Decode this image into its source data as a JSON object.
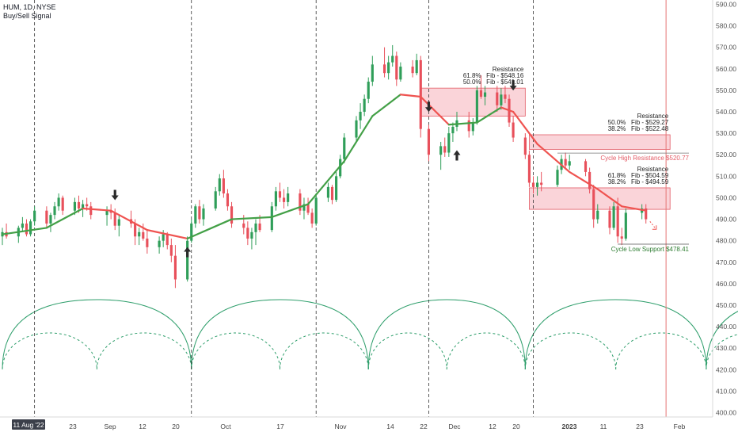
{
  "header": {
    "symbol_line": "HUM, 1D, NYSE",
    "indicator": "Buy/Sell Signal"
  },
  "colors": {
    "up": "#2f9e59",
    "down": "#e8505b",
    "line_up": "#43a047",
    "line_down": "#ef5350",
    "zone_fill": "#f8c6cc",
    "zone_line": "#e35b66",
    "cycle": "#2e9e6b",
    "today_line": "#e57373",
    "support": "#2e7d32"
  },
  "chart_data": {
    "type": "candlestick",
    "ylim": [
      398,
      592
    ],
    "x_dates": [
      "2022-08-11",
      "2023-02-03"
    ],
    "y_ticks": [
      400,
      410,
      420,
      430,
      440,
      450,
      460,
      470,
      480,
      490,
      500,
      510,
      520,
      530,
      540,
      550,
      560,
      570,
      580,
      590
    ],
    "x_labels": [
      "11 Aug '22",
      "23",
      "Sep",
      "12",
      "20",
      "Oct",
      "17",
      "Nov",
      "14",
      "22",
      "Dec",
      "12",
      "20",
      "2023",
      "11",
      "23",
      "Feb"
    ],
    "ohlc": [
      [
        "2022-08-11",
        482,
        486,
        478,
        484
      ],
      [
        "2022-08-12",
        484,
        488,
        481,
        482
      ],
      [
        "2022-08-15",
        482,
        487,
        479,
        486
      ],
      [
        "2022-08-16",
        486,
        491,
        484,
        488
      ],
      [
        "2022-08-17",
        488,
        490,
        482,
        483
      ],
      [
        "2022-08-18",
        483,
        490,
        482,
        489
      ],
      [
        "2022-08-19",
        489,
        496,
        487,
        494
      ],
      [
        "2022-08-22",
        494,
        496,
        486,
        488
      ],
      [
        "2022-08-23",
        488,
        493,
        484,
        492
      ],
      [
        "2022-08-24",
        492,
        498,
        490,
        496
      ],
      [
        "2022-08-25",
        496,
        502,
        494,
        500
      ],
      [
        "2022-08-26",
        500,
        501,
        492,
        494
      ],
      [
        "2022-08-29",
        494,
        500,
        492,
        498
      ],
      [
        "2022-08-30",
        498,
        501,
        493,
        495
      ],
      [
        "2022-08-31",
        495,
        499,
        491,
        497
      ],
      [
        "2022-09-01",
        497,
        500,
        494,
        496
      ],
      [
        "2022-09-02",
        496,
        498,
        490,
        492
      ],
      [
        "2022-09-06",
        492,
        496,
        487,
        494
      ],
      [
        "2022-09-07",
        494,
        497,
        490,
        493
      ],
      [
        "2022-09-08",
        493,
        495,
        485,
        487
      ],
      [
        "2022-09-09",
        487,
        492,
        482,
        490
      ],
      [
        "2022-09-12",
        490,
        494,
        486,
        488
      ],
      [
        "2022-09-13",
        488,
        490,
        478,
        482
      ],
      [
        "2022-09-14",
        482,
        486,
        478,
        484
      ],
      [
        "2022-09-15",
        484,
        488,
        480,
        481
      ],
      [
        "2022-09-16",
        481,
        485,
        474,
        477
      ],
      [
        "2022-09-19",
        477,
        482,
        474,
        480
      ],
      [
        "2022-09-20",
        480,
        485,
        477,
        483
      ],
      [
        "2022-09-21",
        483,
        484,
        476,
        478
      ],
      [
        "2022-09-22",
        478,
        481,
        470,
        473
      ],
      [
        "2022-09-23",
        473,
        478,
        458,
        462
      ],
      [
        "2022-09-26",
        462,
        482,
        461,
        480
      ],
      [
        "2022-09-27",
        480,
        490,
        479,
        488
      ],
      [
        "2022-09-28",
        488,
        497,
        486,
        496
      ],
      [
        "2022-09-29",
        496,
        499,
        488,
        490
      ],
      [
        "2022-09-30",
        490,
        497,
        487,
        495
      ],
      [
        "2022-10-03",
        495,
        505,
        494,
        503
      ],
      [
        "2022-10-04",
        503,
        511,
        501,
        509
      ],
      [
        "2022-10-05",
        509,
        513,
        500,
        502
      ],
      [
        "2022-10-06",
        502,
        504,
        494,
        496
      ],
      [
        "2022-10-07",
        496,
        498,
        486,
        488
      ],
      [
        "2022-10-10",
        488,
        492,
        483,
        486
      ],
      [
        "2022-10-11",
        486,
        489,
        478,
        481
      ],
      [
        "2022-10-12",
        481,
        486,
        476,
        484
      ],
      [
        "2022-10-13",
        484,
        490,
        478,
        488
      ],
      [
        "2022-10-14",
        488,
        492,
        484,
        485
      ],
      [
        "2022-10-17",
        485,
        498,
        484,
        496
      ],
      [
        "2022-10-18",
        496,
        505,
        494,
        503
      ],
      [
        "2022-10-19",
        503,
        507,
        498,
        500
      ],
      [
        "2022-10-20",
        500,
        504,
        495,
        498
      ],
      [
        "2022-10-21",
        498,
        505,
        496,
        502
      ],
      [
        "2022-10-24",
        502,
        504,
        492,
        494
      ],
      [
        "2022-10-25",
        494,
        500,
        490,
        497
      ],
      [
        "2022-10-26",
        497,
        500,
        492,
        493
      ],
      [
        "2022-10-27",
        493,
        495,
        486,
        488
      ],
      [
        "2022-10-28",
        488,
        502,
        487,
        500
      ],
      [
        "2022-10-31",
        500,
        507,
        498,
        505
      ],
      [
        "2022-11-01",
        505,
        506,
        497,
        499
      ],
      [
        "2022-11-02",
        499,
        512,
        498,
        510
      ],
      [
        "2022-11-03",
        510,
        520,
        509,
        518
      ],
      [
        "2022-11-04",
        518,
        530,
        516,
        528
      ],
      [
        "2022-11-07",
        528,
        538,
        526,
        536
      ],
      [
        "2022-11-08",
        536,
        544,
        532,
        540
      ],
      [
        "2022-11-09",
        540,
        548,
        538,
        546
      ],
      [
        "2022-11-10",
        546,
        556,
        544,
        554
      ],
      [
        "2022-11-11",
        554,
        566,
        552,
        562
      ],
      [
        "2022-11-14",
        562,
        570,
        556,
        558
      ],
      [
        "2022-11-15",
        558,
        566,
        555,
        563
      ],
      [
        "2022-11-16",
        563,
        571,
        561,
        566
      ],
      [
        "2022-11-17",
        566,
        568,
        552,
        555
      ],
      [
        "2022-11-18",
        555,
        563,
        554,
        561
      ],
      [
        "2022-11-21",
        561,
        564,
        556,
        558
      ],
      [
        "2022-11-22",
        558,
        567,
        557,
        564
      ],
      [
        "2022-11-23",
        564,
        566,
        528,
        532
      ],
      [
        "2022-11-25",
        532,
        534,
        517,
        520
      ],
      [
        "2022-11-28",
        520,
        526,
        513,
        524
      ],
      [
        "2022-11-29",
        524,
        528,
        519,
        521
      ],
      [
        "2022-11-30",
        521,
        533,
        519,
        530
      ],
      [
        "2022-12-01",
        530,
        535,
        526,
        533
      ],
      [
        "2022-12-02",
        533,
        540,
        531,
        536
      ],
      [
        "2022-12-05",
        536,
        540,
        528,
        531
      ],
      [
        "2022-12-06",
        531,
        537,
        529,
        535
      ],
      [
        "2022-12-07",
        535,
        552,
        534,
        550
      ],
      [
        "2022-12-08",
        550,
        557,
        546,
        547
      ],
      [
        "2022-12-09",
        547,
        552,
        543,
        549
      ],
      [
        "2022-12-12",
        549,
        552,
        540,
        543
      ],
      [
        "2022-12-13",
        543,
        551,
        541,
        548
      ],
      [
        "2022-12-14",
        548,
        552,
        544,
        546
      ],
      [
        "2022-12-15",
        546,
        548,
        533,
        535
      ],
      [
        "2022-12-16",
        535,
        538,
        526,
        528
      ],
      [
        "2022-12-19",
        528,
        530,
        518,
        520
      ],
      [
        "2022-12-20",
        520,
        522,
        505,
        507
      ],
      [
        "2022-12-21",
        507,
        510,
        502,
        505
      ],
      [
        "2022-12-22",
        505,
        510,
        501,
        507
      ],
      [
        "2022-12-23",
        507,
        512,
        503,
        506
      ],
      [
        "2022-12-27",
        506,
        515,
        505,
        513
      ],
      [
        "2022-12-28",
        513,
        520,
        511,
        518
      ],
      [
        "2022-12-29",
        518,
        521,
        513,
        515
      ],
      [
        "2022-12-30",
        515,
        520,
        513,
        517
      ],
      [
        "2023-01-03",
        517,
        518,
        510,
        512
      ],
      [
        "2023-01-04",
        512,
        514,
        502,
        504
      ],
      [
        "2023-01-05",
        504,
        506,
        486,
        490
      ],
      [
        "2023-01-06",
        490,
        497,
        488,
        494
      ],
      [
        "2023-01-09",
        494,
        496,
        483,
        486
      ],
      [
        "2023-01-10",
        486,
        498,
        485,
        496
      ],
      [
        "2023-01-11",
        496,
        500,
        479,
        482
      ],
      [
        "2023-01-12",
        482,
        486,
        478,
        481
      ],
      [
        "2023-01-13",
        481,
        495,
        480,
        493
      ],
      [
        "2023-01-17",
        493,
        497,
        490,
        495
      ],
      [
        "2023-01-18",
        495,
        497,
        488,
        490
      ]
    ],
    "signal_line": [
      [
        "2022-08-11",
        483
      ],
      [
        "2022-08-22",
        486
      ],
      [
        "2022-08-31",
        495
      ],
      [
        "2022-09-07",
        494
      ],
      [
        "2022-09-16",
        485
      ],
      [
        "2022-09-26",
        481
      ],
      [
        "2022-10-07",
        490
      ],
      [
        "2022-10-17",
        491
      ],
      [
        "2022-10-26",
        497
      ],
      [
        "2022-11-04",
        517
      ],
      [
        "2022-11-11",
        538
      ],
      [
        "2022-11-18",
        548
      ],
      [
        "2022-11-23",
        547
      ],
      [
        "2022-11-30",
        534
      ],
      [
        "2022-12-07",
        535
      ],
      [
        "2022-12-13",
        542
      ],
      [
        "2022-12-16",
        540
      ],
      [
        "2022-12-22",
        525
      ],
      [
        "2022-12-30",
        512
      ],
      [
        "2023-01-06",
        504
      ],
      [
        "2023-01-12",
        496
      ],
      [
        "2023-01-18",
        494
      ]
    ],
    "resistance_zones": [
      {
        "x0": "2022-11-23",
        "x1": "2022-12-19",
        "y0": 538,
        "y1": 551,
        "label": "Resistance",
        "fib": [
          "61.8%   Fib - $548.16",
          "50.0%   Fib - $541.01"
        ]
      },
      {
        "x0": "2022-12-20",
        "x1": "2023-01-24",
        "y0": 522.5,
        "y1": 529.3,
        "label": "Resistance",
        "fib": [
          "50.0%   Fib - $529.27",
          "38.2%   Fib - $522.48"
        ]
      },
      {
        "x0": "2022-12-20",
        "x1": "2023-01-24",
        "y0": 494.6,
        "y1": 504.6,
        "label": "Resistance",
        "fib": [
          "61.8%   Fib - $504.59",
          "38.2%   Fib - $494.59"
        ]
      }
    ],
    "levels": [
      {
        "label": "Cycle High Resistance $520.77",
        "value": 520.77,
        "x0": "2022-12-27"
      },
      {
        "label": "Cycle Low Support $478.41",
        "value": 478.41,
        "x0": "2023-01-11"
      }
    ],
    "cycle_dates": [
      "2022-08-11",
      "2022-09-27",
      "2022-11-10",
      "2022-12-19",
      "2023-02-02"
    ],
    "signals": [
      {
        "date": "2022-09-08",
        "dir": "sell",
        "price": 500
      },
      {
        "date": "2022-09-26",
        "dir": "buy",
        "price": 476
      },
      {
        "date": "2022-11-25",
        "dir": "sell",
        "price": 541
      },
      {
        "date": "2022-12-02",
        "dir": "buy",
        "price": 521
      },
      {
        "date": "2022-12-16",
        "dir": "sell",
        "price": 551
      }
    ],
    "vlines": [
      "2022-08-19",
      "2022-09-27",
      "2022-10-28",
      "2022-11-25",
      "2022-12-21"
    ],
    "today": "2023-01-23"
  }
}
